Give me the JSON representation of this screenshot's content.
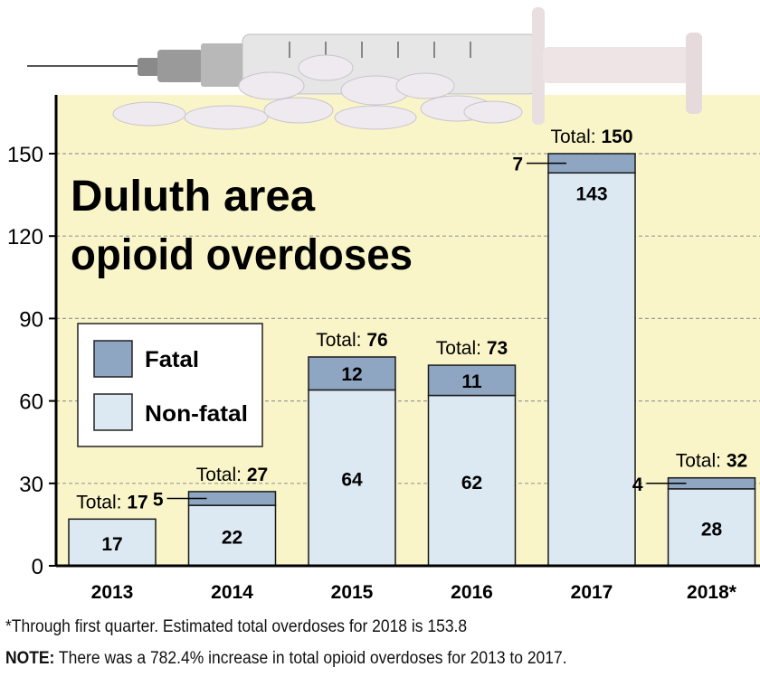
{
  "chart_data": {
    "type": "bar",
    "stacked": true,
    "title": "Duluth area opioid overdoses",
    "title_lines": [
      "Duluth area",
      "opioid overdoses"
    ],
    "categories": [
      "2013",
      "2014",
      "2015",
      "2016",
      "2017",
      "2018*"
    ],
    "series": [
      {
        "name": "Non-fatal",
        "values": [
          17,
          22,
          64,
          62,
          143,
          28
        ],
        "color": "#dce9f3"
      },
      {
        "name": "Fatal",
        "values": [
          0,
          5,
          12,
          11,
          7,
          4
        ],
        "color": "#8ea6c1"
      }
    ],
    "totals": [
      17,
      27,
      76,
      73,
      150,
      32
    ],
    "total_label": "Total:",
    "ylim": [
      0,
      150
    ],
    "yticks": [
      0,
      30,
      60,
      90,
      120,
      150
    ],
    "grid": true,
    "legend_position": "left",
    "background_color": "#faf5c8"
  },
  "footnote": "*Through first quarter. Estimated total overdoses for 2018 is 153.8",
  "note": {
    "label": "NOTE:",
    "text": " There was a 782.4% increase in total opioid overdoses for 2013 to 2017."
  }
}
